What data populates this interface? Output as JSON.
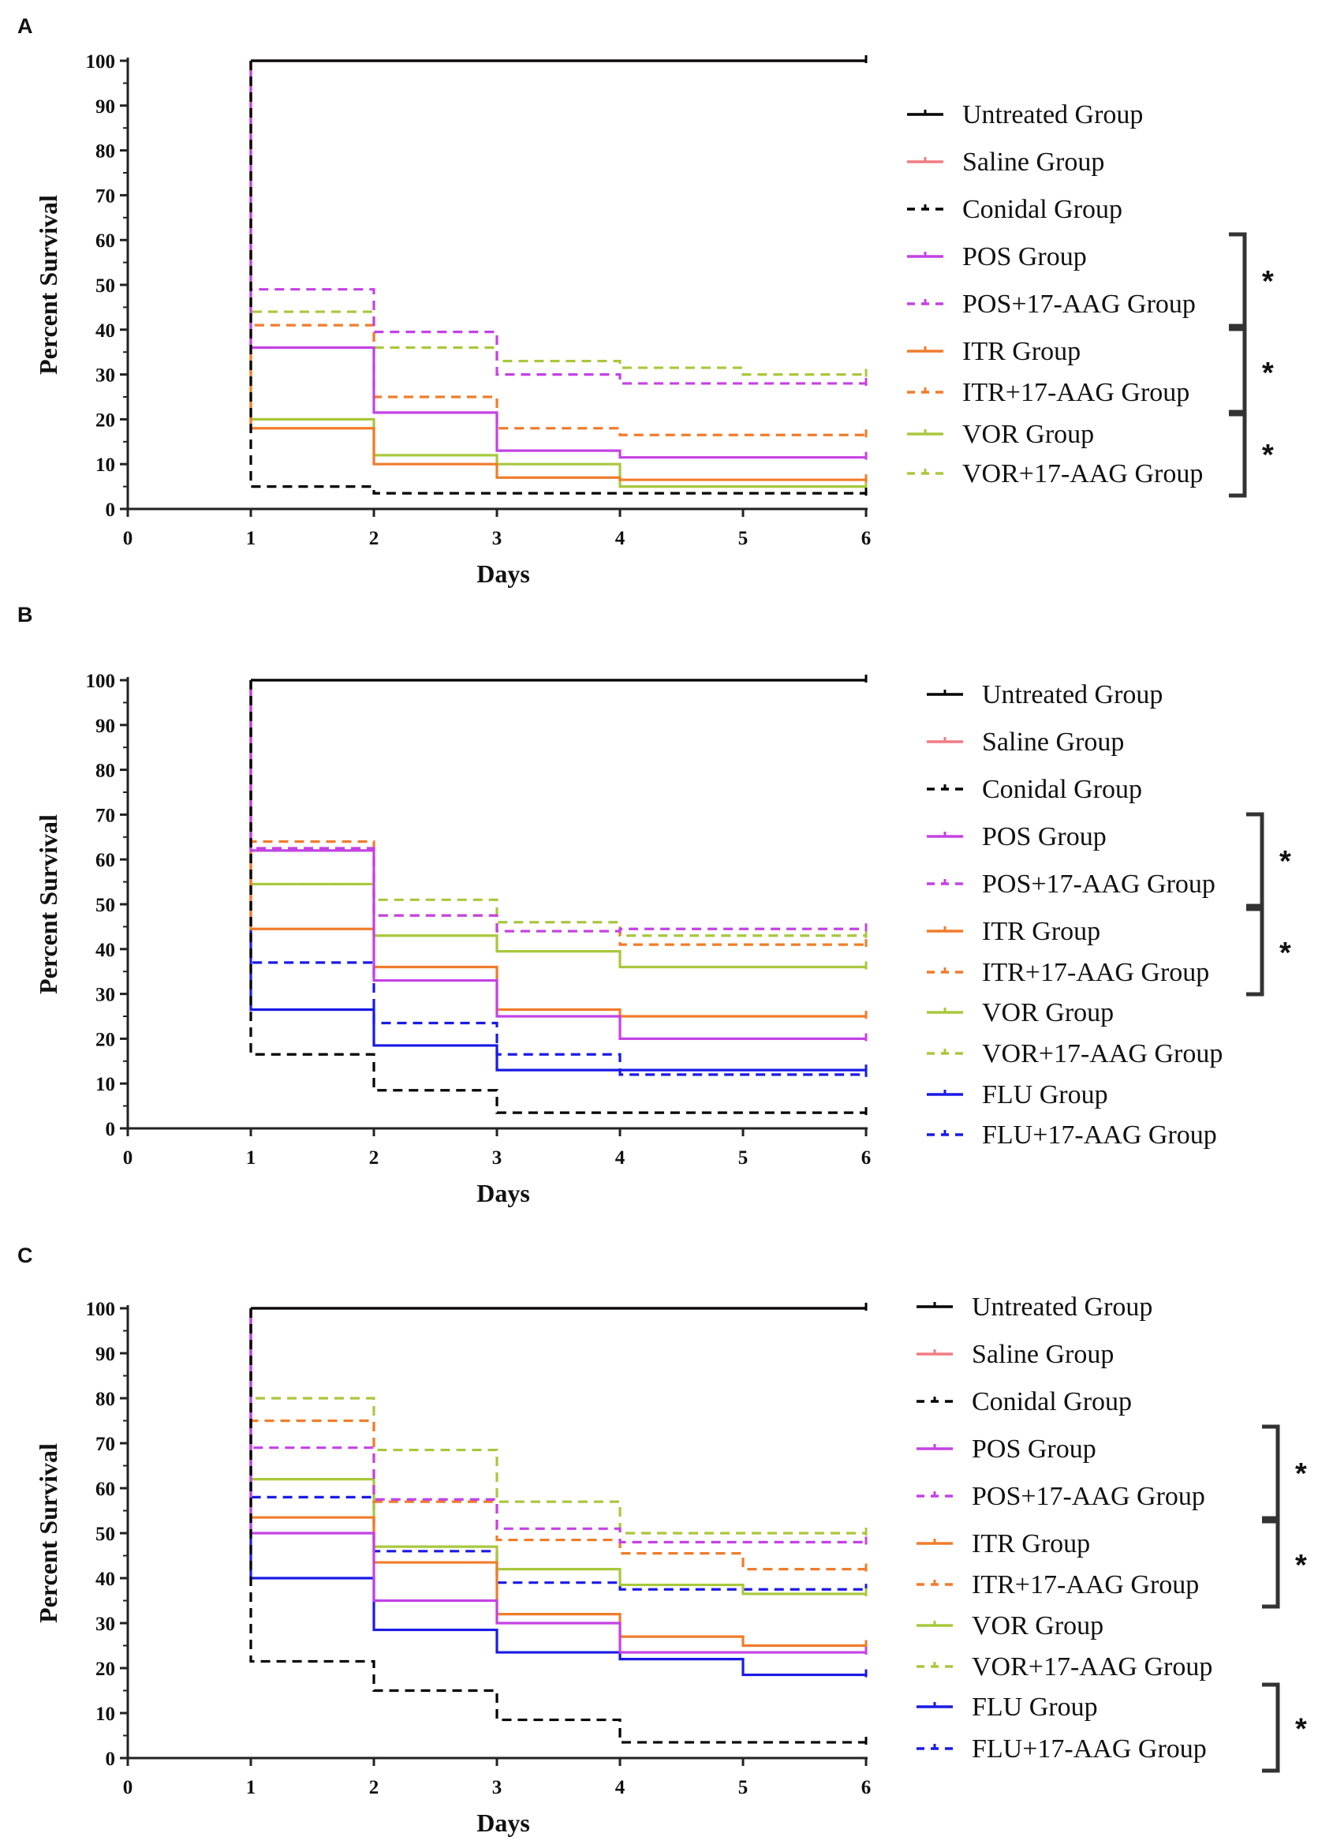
{
  "colors": {
    "Untreated": "#000000",
    "Saline": "#f07c82",
    "Conidal": "#000000",
    "POS": "#c442e4",
    "ITR": "#f07c2b",
    "VOR": "#a8c83c",
    "FLU": "#1a1ae6"
  },
  "chart_data": [
    {
      "type": "line",
      "panel_label": "A",
      "xlabel": "Days",
      "ylabel": "Percent Survival",
      "xlim": [
        0,
        6
      ],
      "ylim": [
        0,
        100
      ],
      "x_ticks": [
        "0",
        "1",
        "2",
        "3",
        "4",
        "5",
        "6"
      ],
      "y_ticks": [
        "0",
        "10",
        "20",
        "30",
        "40",
        "50",
        "60",
        "70",
        "80",
        "90",
        "100"
      ],
      "x": [
        1,
        2,
        3,
        4,
        5,
        6
      ],
      "series": [
        {
          "name": "Untreated Group",
          "color_key": "Untreated",
          "dashed": false,
          "values": [
            100,
            100,
            100,
            100,
            100,
            100
          ]
        },
        {
          "name": "Saline Group",
          "color_key": "Saline",
          "dashed": false,
          "values": [
            100,
            100,
            100,
            100,
            100,
            100
          ]
        },
        {
          "name": "Conidal Group",
          "color_key": "Conidal",
          "dashed": true,
          "values": [
            5,
            3.5,
            3.5,
            3.5,
            3.5,
            3.5
          ]
        },
        {
          "name": "POS Group",
          "color_key": "POS",
          "dashed": false,
          "values": [
            36,
            21.5,
            13,
            11.5,
            11.5,
            11.5
          ]
        },
        {
          "name": "POS+17-AAG Group",
          "color_key": "POS",
          "dashed": true,
          "values": [
            49,
            39.5,
            30,
            28,
            28,
            28
          ]
        },
        {
          "name": "ITR Group",
          "color_key": "ITR",
          "dashed": false,
          "values": [
            18,
            10,
            7,
            6.5,
            6.5,
            6.5
          ]
        },
        {
          "name": "ITR+17-AAG Group",
          "color_key": "ITR",
          "dashed": true,
          "values": [
            41,
            25,
            18,
            16.5,
            16.5,
            16.5
          ]
        },
        {
          "name": "VOR Group",
          "color_key": "VOR",
          "dashed": false,
          "values": [
            20,
            12,
            10,
            5,
            5,
            5
          ]
        },
        {
          "name": "VOR+17-AAG Group",
          "color_key": "VOR",
          "dashed": true,
          "values": [
            44,
            36,
            33,
            31.5,
            30,
            30
          ]
        }
      ],
      "significance": [
        {
          "label": "*",
          "spans": [
            "POS Group",
            "POS+17-AAG Group"
          ]
        },
        {
          "label": "*",
          "spans": [
            "ITR Group",
            "ITR+17-AAG Group"
          ]
        },
        {
          "label": "*",
          "spans": [
            "VOR Group",
            "VOR+17-AAG Group"
          ]
        }
      ]
    },
    {
      "type": "line",
      "panel_label": "B",
      "xlabel": "Days",
      "ylabel": "Percent Survival",
      "xlim": [
        0,
        6
      ],
      "ylim": [
        0,
        100
      ],
      "x_ticks": [
        "0",
        "1",
        "2",
        "3",
        "4",
        "5",
        "6"
      ],
      "y_ticks": [
        "0",
        "10",
        "20",
        "30",
        "40",
        "50",
        "60",
        "70",
        "80",
        "90",
        "100"
      ],
      "x": [
        1,
        2,
        3,
        4,
        5,
        6
      ],
      "series": [
        {
          "name": "Untreated Group",
          "color_key": "Untreated",
          "dashed": false,
          "values": [
            100,
            100,
            100,
            100,
            100,
            100
          ]
        },
        {
          "name": "Saline Group",
          "color_key": "Saline",
          "dashed": false,
          "values": [
            100,
            100,
            100,
            100,
            100,
            100
          ]
        },
        {
          "name": "Conidal Group",
          "color_key": "Conidal",
          "dashed": true,
          "values": [
            16.5,
            8.5,
            3.5,
            3.5,
            3.5,
            3.5
          ]
        },
        {
          "name": "POS Group",
          "color_key": "POS",
          "dashed": false,
          "values": [
            62,
            33,
            25,
            20,
            20,
            20
          ]
        },
        {
          "name": "POS+17-AAG Group",
          "color_key": "POS",
          "dashed": true,
          "values": [
            62.5,
            47.5,
            44,
            44.5,
            44.5,
            44.5
          ]
        },
        {
          "name": "ITR Group",
          "color_key": "ITR",
          "dashed": false,
          "values": [
            44.5,
            36,
            26.5,
            25,
            25,
            25
          ]
        },
        {
          "name": "ITR+17-AAG Group",
          "color_key": "ITR",
          "dashed": true,
          "values": [
            64,
            47.5,
            44,
            41,
            41,
            41
          ]
        },
        {
          "name": "VOR Group",
          "color_key": "VOR",
          "dashed": false,
          "values": [
            54.5,
            43,
            39.5,
            36,
            36,
            36
          ]
        },
        {
          "name": "VOR+17-AAG Group",
          "color_key": "VOR",
          "dashed": true,
          "values": [
            54.5,
            51,
            46,
            43,
            43,
            43
          ]
        },
        {
          "name": "FLU Group",
          "color_key": "FLU",
          "dashed": false,
          "values": [
            26.5,
            18.5,
            13,
            13,
            13,
            13
          ]
        },
        {
          "name": "FLU+17-AAG Group",
          "color_key": "FLU",
          "dashed": true,
          "values": [
            37,
            23.5,
            16.5,
            12,
            12,
            12
          ]
        }
      ],
      "significance": [
        {
          "label": "*",
          "spans": [
            "POS Group",
            "POS+17-AAG Group"
          ]
        },
        {
          "label": "*",
          "spans": [
            "ITR Group",
            "ITR+17-AAG Group"
          ]
        }
      ]
    },
    {
      "type": "line",
      "panel_label": "C",
      "xlabel": "Days",
      "ylabel": "Percent Survival",
      "xlim": [
        0,
        6
      ],
      "ylim": [
        0,
        100
      ],
      "x_ticks": [
        "0",
        "1",
        "2",
        "3",
        "4",
        "5",
        "6"
      ],
      "y_ticks": [
        "0",
        "10",
        "20",
        "30",
        "40",
        "50",
        "60",
        "70",
        "80",
        "90",
        "100"
      ],
      "x": [
        1,
        2,
        3,
        4,
        5,
        6
      ],
      "series": [
        {
          "name": "Untreated Group",
          "color_key": "Untreated",
          "dashed": false,
          "values": [
            100,
            100,
            100,
            100,
            100,
            100
          ]
        },
        {
          "name": "Saline Group",
          "color_key": "Saline",
          "dashed": false,
          "values": [
            100,
            100,
            100,
            100,
            100,
            100
          ]
        },
        {
          "name": "Conidal Group",
          "color_key": "Conidal",
          "dashed": true,
          "values": [
            21.5,
            15,
            8.5,
            3.5,
            3.5,
            3.5
          ]
        },
        {
          "name": "POS Group",
          "color_key": "POS",
          "dashed": false,
          "values": [
            50,
            35,
            30,
            23.5,
            23.5,
            23.5
          ]
        },
        {
          "name": "POS+17-AAG Group",
          "color_key": "POS",
          "dashed": true,
          "values": [
            69,
            57.5,
            51,
            48,
            48,
            48
          ]
        },
        {
          "name": "ITR Group",
          "color_key": "ITR",
          "dashed": false,
          "values": [
            53.5,
            43.5,
            32,
            27,
            25,
            25
          ]
        },
        {
          "name": "ITR+17-AAG Group",
          "color_key": "ITR",
          "dashed": true,
          "values": [
            75,
            57,
            48.5,
            45.5,
            42,
            42
          ]
        },
        {
          "name": "VOR Group",
          "color_key": "VOR",
          "dashed": false,
          "values": [
            62,
            47,
            42,
            38.5,
            36.5,
            36.5
          ]
        },
        {
          "name": "VOR+17-AAG Group",
          "color_key": "VOR",
          "dashed": true,
          "values": [
            80,
            68.5,
            57,
            50,
            50,
            50
          ]
        },
        {
          "name": "FLU Group",
          "color_key": "FLU",
          "dashed": false,
          "values": [
            40,
            28.5,
            23.5,
            22,
            18.5,
            18.5
          ]
        },
        {
          "name": "FLU+17-AAG Group",
          "color_key": "FLU",
          "dashed": true,
          "values": [
            58,
            46,
            39,
            37.5,
            37.5,
            37.5
          ]
        }
      ],
      "significance": [
        {
          "label": "*",
          "spans": [
            "POS Group",
            "POS+17-AAG Group"
          ]
        },
        {
          "label": "*",
          "spans": [
            "ITR Group",
            "ITR+17-AAG Group"
          ]
        },
        {
          "label": "*",
          "spans": [
            "FLU Group",
            "FLU+17-AAG Group"
          ]
        }
      ]
    }
  ]
}
